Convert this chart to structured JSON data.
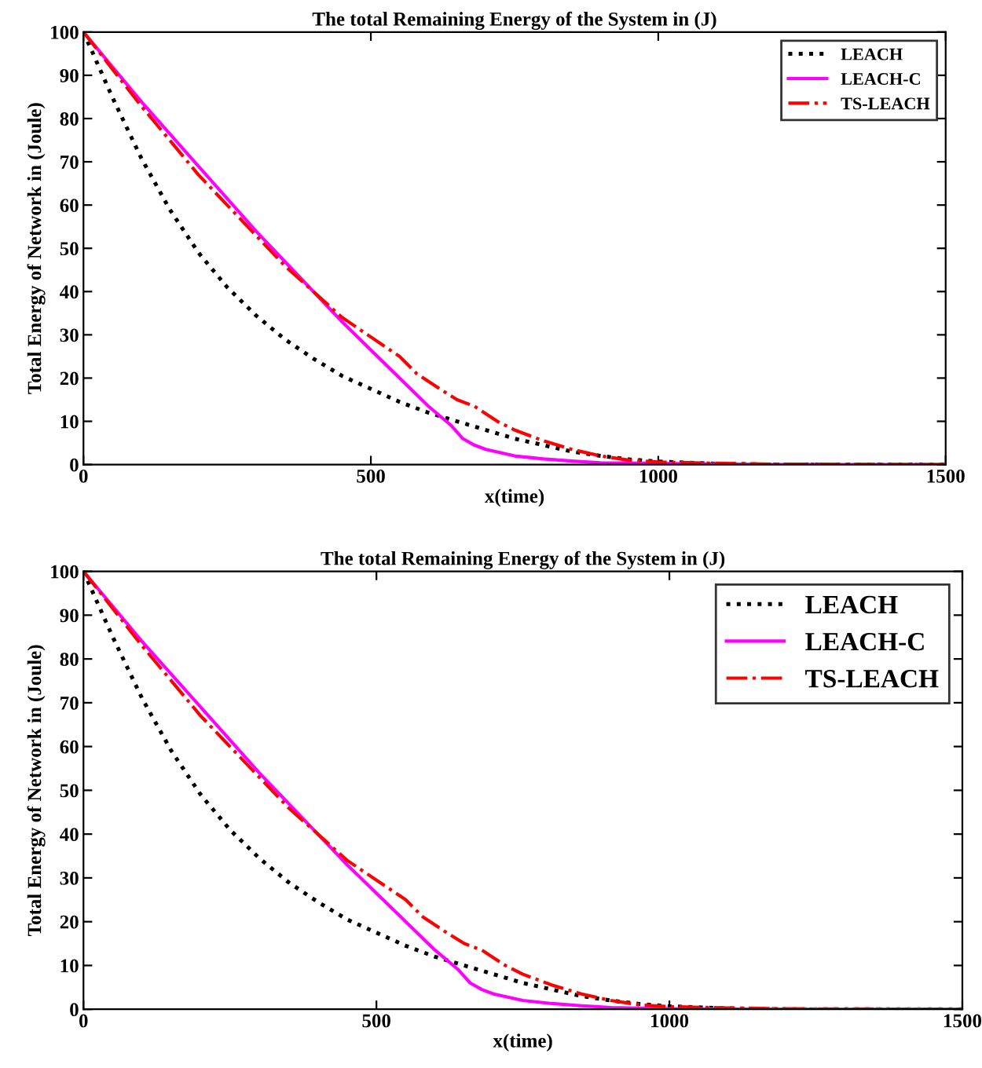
{
  "chart_data": [
    {
      "type": "line",
      "title": "The total Remaining Energy of the System in (J)",
      "xlabel": "x(time)",
      "ylabel": "Total Energy of Network in (Joule)",
      "xlim": [
        0,
        1500
      ],
      "ylim": [
        0,
        100
      ],
      "xticks": [
        0,
        500,
        1000,
        1500
      ],
      "yticks": [
        0,
        10,
        20,
        30,
        40,
        50,
        60,
        70,
        80,
        90,
        100
      ],
      "grid": false,
      "legend": "top right",
      "series": [
        {
          "name": "LEACH",
          "color": "#000000",
          "line_style": "dotted",
          "x": [
            0,
            50,
            100,
            150,
            200,
            250,
            300,
            350,
            400,
            450,
            500,
            550,
            600,
            650,
            700,
            750,
            800,
            850,
            900,
            950,
            1000,
            1100,
            1200,
            1500
          ],
          "values": [
            100,
            85,
            71,
            59,
            49,
            41,
            34.5,
            29,
            24.5,
            20.5,
            17.5,
            14.5,
            12,
            10,
            8,
            6,
            4.5,
            3,
            2,
            1.2,
            0.7,
            0.2,
            0,
            0
          ]
        },
        {
          "name": "LEACH-C",
          "color": "#ff00ff",
          "line_style": "solid",
          "x": [
            0,
            100,
            200,
            300,
            350,
            400,
            450,
            500,
            550,
            600,
            640,
            660,
            680,
            700,
            750,
            800,
            850,
            900,
            1200,
            1500
          ],
          "values": [
            100,
            84,
            69,
            54,
            47,
            40,
            33,
            26.5,
            20,
            13.5,
            9,
            6,
            4.5,
            3.5,
            2,
            1.3,
            0.8,
            0.4,
            0,
            0
          ]
        },
        {
          "name": "TS-LEACH",
          "color": "#ff0000",
          "line_style": "dashdot",
          "x": [
            0,
            100,
            200,
            300,
            350,
            400,
            450,
            500,
            550,
            580,
            620,
            650,
            680,
            720,
            750,
            800,
            850,
            900,
            950,
            1000,
            1100,
            1200,
            1500
          ],
          "values": [
            100,
            83,
            67,
            53,
            46,
            40,
            34,
            29.5,
            25,
            21,
            17.5,
            15,
            13.5,
            10,
            8,
            5.5,
            3.5,
            2,
            1,
            0.6,
            0.3,
            0.1,
            0
          ]
        }
      ]
    },
    {
      "type": "line",
      "title": "The total Remaining Energy of the System in (J)",
      "xlabel": "x(time)",
      "ylabel": "Total Energy of Network in (Joule)",
      "xlim": [
        0,
        1500
      ],
      "ylim": [
        0,
        100
      ],
      "xticks": [
        0,
        500,
        1000,
        1500
      ],
      "yticks": [
        0,
        10,
        20,
        30,
        40,
        50,
        60,
        70,
        80,
        90,
        100
      ],
      "grid": false,
      "legend": "top right",
      "series": [
        {
          "name": "LEACH",
          "color": "#000000",
          "line_style": "dotted",
          "x": [
            0,
            50,
            100,
            150,
            200,
            250,
            300,
            350,
            400,
            450,
            500,
            550,
            600,
            650,
            700,
            750,
            800,
            850,
            900,
            950,
            1000,
            1100,
            1200,
            1500
          ],
          "values": [
            100,
            85,
            71,
            59,
            49,
            41,
            34.5,
            29,
            24.5,
            20.5,
            17.5,
            14.5,
            12,
            10,
            8,
            6,
            4.5,
            3,
            2,
            1.2,
            0.7,
            0.2,
            0,
            0
          ]
        },
        {
          "name": "LEACH-C",
          "color": "#ff00ff",
          "line_style": "solid",
          "x": [
            0,
            100,
            200,
            300,
            350,
            400,
            450,
            500,
            550,
            600,
            640,
            660,
            680,
            700,
            750,
            800,
            850,
            900,
            1000,
            1200,
            1500
          ],
          "values": [
            100,
            84,
            69,
            54,
            47,
            40,
            33,
            26.5,
            20,
            13.5,
            9,
            6,
            4.5,
            3.5,
            2,
            1.3,
            0.8,
            0.4,
            0.1,
            0,
            0
          ]
        },
        {
          "name": "TS-LEACH",
          "color": "#ff0000",
          "line_style": "dashdot",
          "x": [
            0,
            100,
            200,
            300,
            350,
            400,
            450,
            500,
            550,
            580,
            620,
            650,
            680,
            720,
            750,
            800,
            850,
            900,
            950,
            1000,
            1100,
            1200,
            1500
          ],
          "values": [
            100,
            83,
            67,
            53,
            46,
            40,
            34,
            29.5,
            25,
            21,
            17.5,
            15,
            13.5,
            10,
            8,
            5.5,
            3.5,
            2,
            1,
            0.6,
            0.3,
            0.1,
            0
          ]
        }
      ]
    }
  ]
}
